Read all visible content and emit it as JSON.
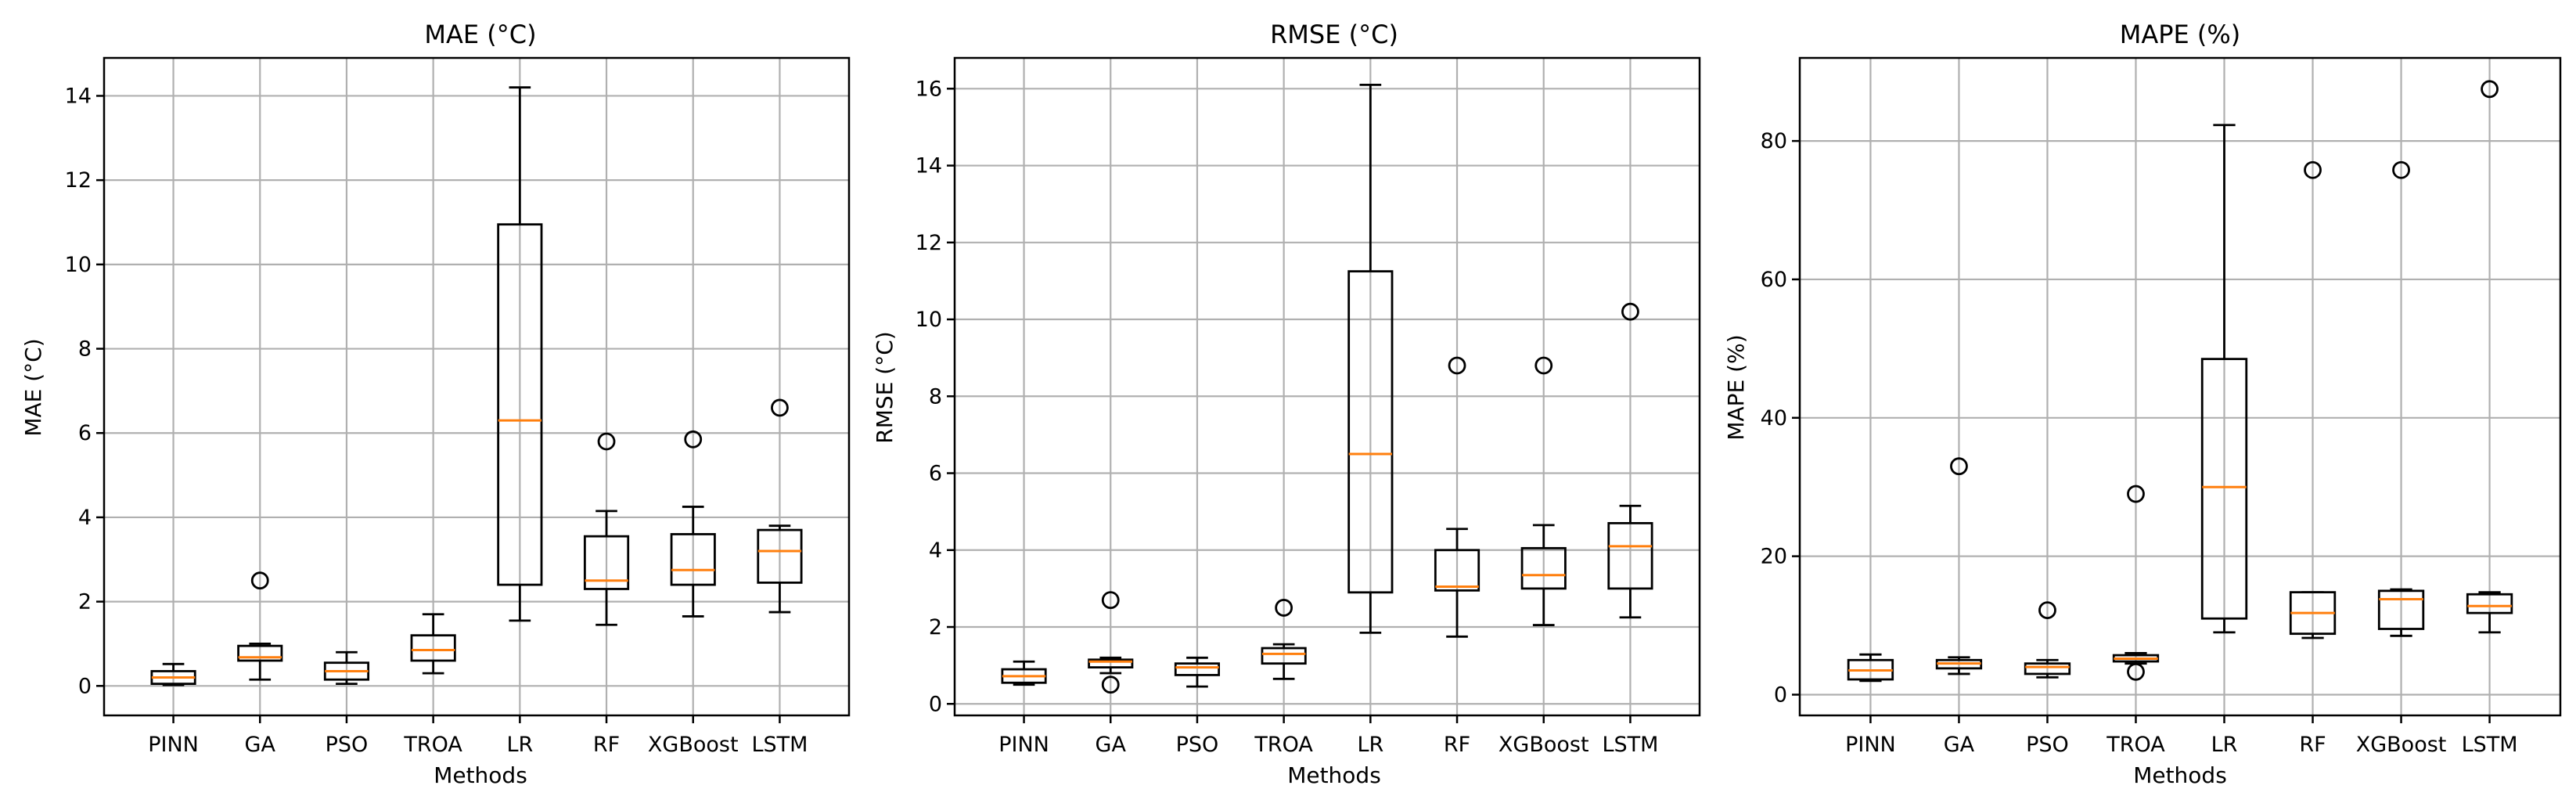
{
  "style": {
    "median_color": "#ff7f0e",
    "box_color": "#000000",
    "grid_color": "#b0b0b0"
  },
  "chart_data": [
    {
      "type": "box",
      "title": "MAE (°C)",
      "xlabel": "Methods",
      "ylabel": "MAE (°C)",
      "ylim": [
        -0.7,
        14.9
      ],
      "yticks": [
        0,
        2,
        4,
        6,
        8,
        10,
        12,
        14
      ],
      "grid": true,
      "categories": [
        "PINN",
        "GA",
        "PSO",
        "TROA",
        "LR",
        "RF",
        "XGBoost",
        "LSTM"
      ],
      "boxes": [
        {
          "whislo": 0.02,
          "q1": 0.05,
          "med": 0.2,
          "q3": 0.35,
          "whishi": 0.52,
          "fliers": []
        },
        {
          "whislo": 0.15,
          "q1": 0.6,
          "med": 0.68,
          "q3": 0.95,
          "whishi": 1.0,
          "fliers": [
            2.5
          ]
        },
        {
          "whislo": 0.05,
          "q1": 0.15,
          "med": 0.35,
          "q3": 0.55,
          "whishi": 0.8,
          "fliers": []
        },
        {
          "whislo": 0.3,
          "q1": 0.6,
          "med": 0.85,
          "q3": 1.2,
          "whishi": 1.7,
          "fliers": []
        },
        {
          "whislo": 1.55,
          "q1": 2.4,
          "med": 6.3,
          "q3": 10.95,
          "whishi": 14.2,
          "fliers": []
        },
        {
          "whislo": 1.45,
          "q1": 2.3,
          "med": 2.5,
          "q3": 3.55,
          "whishi": 4.15,
          "fliers": [
            5.8
          ]
        },
        {
          "whislo": 1.65,
          "q1": 2.4,
          "med": 2.75,
          "q3": 3.6,
          "whishi": 4.25,
          "fliers": [
            5.85
          ]
        },
        {
          "whislo": 1.75,
          "q1": 2.45,
          "med": 3.2,
          "q3": 3.7,
          "whishi": 3.8,
          "fliers": [
            6.6
          ]
        }
      ]
    },
    {
      "type": "box",
      "title": "RMSE (°C)",
      "xlabel": "Methods",
      "ylabel": "RMSE (°C)",
      "ylim": [
        -0.3,
        16.8
      ],
      "yticks": [
        0,
        2,
        4,
        6,
        8,
        10,
        12,
        14,
        16
      ],
      "grid": true,
      "categories": [
        "PINN",
        "GA",
        "PSO",
        "TROA",
        "LR",
        "RF",
        "XGBoost",
        "LSTM"
      ],
      "boxes": [
        {
          "whislo": 0.5,
          "q1": 0.55,
          "med": 0.72,
          "q3": 0.9,
          "whishi": 1.1,
          "fliers": []
        },
        {
          "whislo": 0.8,
          "q1": 0.95,
          "med": 1.1,
          "q3": 1.15,
          "whishi": 1.2,
          "fliers": [
            2.7,
            0.5
          ]
        },
        {
          "whislo": 0.45,
          "q1": 0.75,
          "med": 0.95,
          "q3": 1.05,
          "whishi": 1.2,
          "fliers": []
        },
        {
          "whislo": 0.65,
          "q1": 1.05,
          "med": 1.3,
          "q3": 1.45,
          "whishi": 1.55,
          "fliers": [
            2.5
          ]
        },
        {
          "whislo": 1.85,
          "q1": 2.9,
          "med": 6.5,
          "q3": 11.25,
          "whishi": 16.1,
          "fliers": []
        },
        {
          "whislo": 1.75,
          "q1": 2.95,
          "med": 3.05,
          "q3": 4.0,
          "whishi": 4.55,
          "fliers": [
            8.8
          ]
        },
        {
          "whislo": 2.05,
          "q1": 3.0,
          "med": 3.35,
          "q3": 4.05,
          "whishi": 4.65,
          "fliers": [
            8.8
          ]
        },
        {
          "whislo": 2.25,
          "q1": 3.0,
          "med": 4.1,
          "q3": 4.7,
          "whishi": 5.15,
          "fliers": [
            10.2
          ]
        }
      ]
    },
    {
      "type": "box",
      "title": "MAPE (%)",
      "xlabel": "Methods",
      "ylabel": "MAPE (%)",
      "ylim": [
        -3,
        92
      ],
      "yticks": [
        0,
        20,
        40,
        60,
        80
      ],
      "grid": true,
      "categories": [
        "PINN",
        "GA",
        "PSO",
        "TROA",
        "LR",
        "RF",
        "XGBoost",
        "LSTM"
      ],
      "boxes": [
        {
          "whislo": 2.0,
          "q1": 2.2,
          "med": 3.5,
          "q3": 5.0,
          "whishi": 5.8,
          "fliers": []
        },
        {
          "whislo": 3.0,
          "q1": 3.8,
          "med": 4.5,
          "q3": 5.0,
          "whishi": 5.4,
          "fliers": [
            33.0
          ]
        },
        {
          "whislo": 2.5,
          "q1": 3.0,
          "med": 4.0,
          "q3": 4.5,
          "whishi": 5.0,
          "fliers": [
            12.2
          ]
        },
        {
          "whislo": 4.5,
          "q1": 4.8,
          "med": 5.2,
          "q3": 5.7,
          "whishi": 6.0,
          "fliers": [
            29.0,
            3.3
          ]
        },
        {
          "whislo": 9.0,
          "q1": 11.0,
          "med": 30.0,
          "q3": 48.5,
          "whishi": 82.3,
          "fliers": []
        },
        {
          "whislo": 8.2,
          "q1": 8.8,
          "med": 11.8,
          "q3": 14.8,
          "whishi": 14.8,
          "fliers": [
            75.8
          ]
        },
        {
          "whislo": 8.5,
          "q1": 9.5,
          "med": 13.8,
          "q3": 15.0,
          "whishi": 15.2,
          "fliers": [
            75.8
          ]
        },
        {
          "whislo": 9.0,
          "q1": 11.8,
          "med": 12.8,
          "q3": 14.5,
          "whishi": 14.8,
          "fliers": [
            87.5
          ]
        }
      ]
    }
  ]
}
